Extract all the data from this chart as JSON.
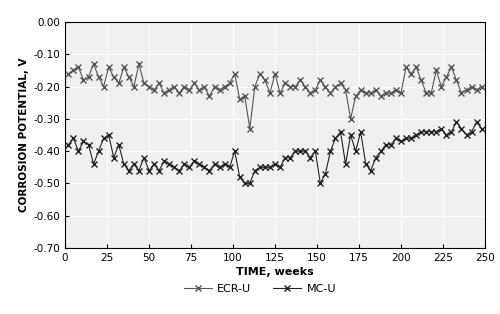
{
  "title": "",
  "xlabel": "TIME, weeks",
  "ylabel": "CORROSION POTENTIAL, V",
  "xlim": [
    0,
    250
  ],
  "ylim": [
    -0.7,
    0.0
  ],
  "xticks": [
    0,
    25,
    50,
    75,
    100,
    125,
    150,
    175,
    200,
    225,
    250
  ],
  "yticks": [
    0.0,
    -0.1,
    -0.2,
    -0.3,
    -0.4,
    -0.5,
    -0.6,
    -0.7
  ],
  "background_color": "#ffffff",
  "plot_bg_color": "#f0f0f0",
  "grid_color": "#ffffff",
  "series": [
    {
      "label": "ECR-U",
      "color": "#555555",
      "marker": "x",
      "markersize": 4,
      "linewidth": 0.8,
      "x": [
        2,
        5,
        8,
        11,
        14,
        17,
        20,
        23,
        26,
        29,
        32,
        35,
        38,
        41,
        44,
        47,
        50,
        53,
        56,
        59,
        62,
        65,
        68,
        71,
        74,
        77,
        80,
        83,
        86,
        89,
        92,
        95,
        98,
        101,
        104,
        107,
        110,
        113,
        116,
        119,
        122,
        125,
        128,
        131,
        134,
        137,
        140,
        143,
        146,
        149,
        152,
        155,
        158,
        161,
        164,
        167,
        170,
        173,
        176,
        179,
        182,
        185,
        188,
        191,
        194,
        197,
        200,
        203,
        206,
        209,
        212,
        215,
        218,
        221,
        224,
        227,
        230,
        233,
        236,
        239,
        242,
        245,
        248
      ],
      "y": [
        -0.16,
        -0.15,
        -0.14,
        -0.18,
        -0.17,
        -0.13,
        -0.17,
        -0.2,
        -0.14,
        -0.17,
        -0.19,
        -0.14,
        -0.17,
        -0.2,
        -0.13,
        -0.19,
        -0.2,
        -0.21,
        -0.19,
        -0.22,
        -0.21,
        -0.2,
        -0.22,
        -0.2,
        -0.21,
        -0.19,
        -0.21,
        -0.2,
        -0.23,
        -0.2,
        -0.21,
        -0.2,
        -0.19,
        -0.16,
        -0.24,
        -0.23,
        -0.33,
        -0.2,
        -0.16,
        -0.18,
        -0.22,
        -0.16,
        -0.22,
        -0.19,
        -0.2,
        -0.2,
        -0.18,
        -0.2,
        -0.22,
        -0.21,
        -0.18,
        -0.2,
        -0.22,
        -0.2,
        -0.19,
        -0.21,
        -0.3,
        -0.23,
        -0.21,
        -0.22,
        -0.22,
        -0.21,
        -0.23,
        -0.22,
        -0.22,
        -0.21,
        -0.22,
        -0.14,
        -0.16,
        -0.14,
        -0.18,
        -0.22,
        -0.22,
        -0.15,
        -0.2,
        -0.17,
        -0.14,
        -0.18,
        -0.22,
        -0.21,
        -0.2,
        -0.21,
        -0.2
      ]
    },
    {
      "label": "MC-U",
      "color": "#222222",
      "marker": "x",
      "markersize": 5,
      "linewidth": 0.8,
      "x": [
        2,
        5,
        8,
        11,
        14,
        17,
        20,
        23,
        26,
        29,
        32,
        35,
        38,
        41,
        44,
        47,
        50,
        53,
        56,
        59,
        62,
        65,
        68,
        71,
        74,
        77,
        80,
        83,
        86,
        89,
        92,
        95,
        98,
        101,
        104,
        107,
        110,
        113,
        116,
        119,
        122,
        125,
        128,
        131,
        134,
        137,
        140,
        143,
        146,
        149,
        152,
        155,
        158,
        161,
        164,
        167,
        170,
        173,
        176,
        179,
        182,
        185,
        188,
        191,
        194,
        197,
        200,
        203,
        206,
        209,
        212,
        215,
        218,
        221,
        224,
        227,
        230,
        233,
        236,
        239,
        242,
        245,
        248
      ],
      "y": [
        -0.38,
        -0.36,
        -0.4,
        -0.37,
        -0.38,
        -0.44,
        -0.4,
        -0.36,
        -0.35,
        -0.42,
        -0.38,
        -0.44,
        -0.46,
        -0.44,
        -0.46,
        -0.42,
        -0.46,
        -0.44,
        -0.46,
        -0.43,
        -0.44,
        -0.45,
        -0.46,
        -0.44,
        -0.45,
        -0.43,
        -0.44,
        -0.45,
        -0.46,
        -0.44,
        -0.45,
        -0.44,
        -0.45,
        -0.4,
        -0.48,
        -0.5,
        -0.5,
        -0.46,
        -0.45,
        -0.45,
        -0.45,
        -0.44,
        -0.45,
        -0.42,
        -0.42,
        -0.4,
        -0.4,
        -0.4,
        -0.42,
        -0.4,
        -0.5,
        -0.47,
        -0.4,
        -0.36,
        -0.34,
        -0.44,
        -0.35,
        -0.4,
        -0.34,
        -0.44,
        -0.46,
        -0.42,
        -0.4,
        -0.38,
        -0.38,
        -0.36,
        -0.37,
        -0.36,
        -0.36,
        -0.35,
        -0.34,
        -0.34,
        -0.34,
        -0.34,
        -0.33,
        -0.35,
        -0.34,
        -0.31,
        -0.33,
        -0.35,
        -0.34,
        -0.31,
        -0.33
      ]
    }
  ],
  "legend_ncol": 2,
  "figsize": [
    5.0,
    3.14
  ],
  "dpi": 100
}
